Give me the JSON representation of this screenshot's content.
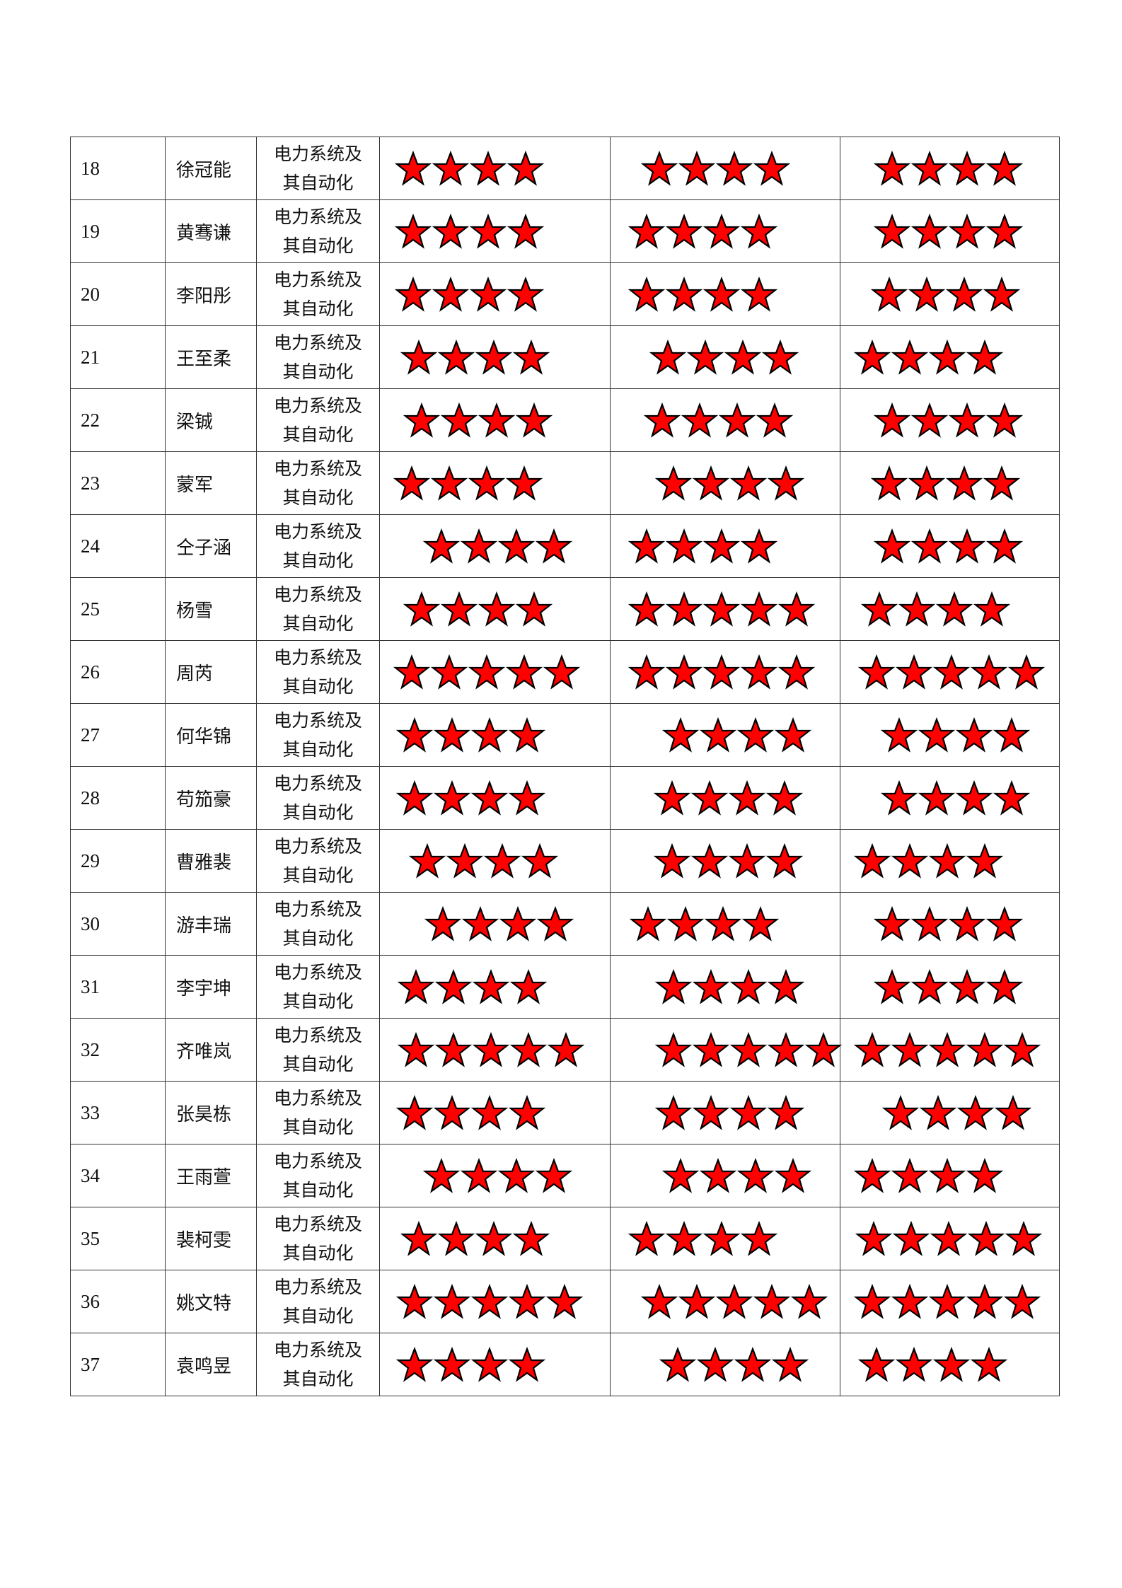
{
  "star_color": "#ff0000",
  "rows": [
    {
      "num": "18",
      "name": "徐冠能",
      "major_line1": "电力系统及",
      "major_line2": "其自动化",
      "ratings": [
        4,
        4,
        4
      ]
    },
    {
      "num": "19",
      "name": "黄骞谦",
      "major_line1": "电力系统及",
      "major_line2": "其自动化",
      "ratings": [
        4,
        4,
        4
      ]
    },
    {
      "num": "20",
      "name": "李阳彤",
      "major_line1": "电力系统及",
      "major_line2": "其自动化",
      "ratings": [
        4,
        4,
        4
      ]
    },
    {
      "num": "21",
      "name": "王至柔",
      "major_line1": "电力系统及",
      "major_line2": "其自动化",
      "ratings": [
        4,
        4,
        4
      ]
    },
    {
      "num": "22",
      "name": "梁铖",
      "major_line1": "电力系统及",
      "major_line2": "其自动化",
      "ratings": [
        4,
        4,
        4
      ]
    },
    {
      "num": "23",
      "name": "蒙军",
      "major_line1": "电力系统及",
      "major_line2": "其自动化",
      "ratings": [
        4,
        4,
        4
      ]
    },
    {
      "num": "24",
      "name": "仝子涵",
      "major_line1": "电力系统及",
      "major_line2": "其自动化",
      "ratings": [
        4,
        4,
        4
      ]
    },
    {
      "num": "25",
      "name": "杨雪",
      "major_line1": "电力系统及",
      "major_line2": "其自动化",
      "ratings": [
        4,
        5,
        4
      ]
    },
    {
      "num": "26",
      "name": "周芮",
      "major_line1": "电力系统及",
      "major_line2": "其自动化",
      "ratings": [
        5,
        5,
        5
      ]
    },
    {
      "num": "27",
      "name": "何华锦",
      "major_line1": "电力系统及",
      "major_line2": "其自动化",
      "ratings": [
        4,
        4,
        4
      ]
    },
    {
      "num": "28",
      "name": "苟笳豪",
      "major_line1": "电力系统及",
      "major_line2": "其自动化",
      "ratings": [
        4,
        4,
        4
      ]
    },
    {
      "num": "29",
      "name": "曹雅裴",
      "major_line1": "电力系统及",
      "major_line2": "其自动化",
      "ratings": [
        4,
        4,
        4
      ]
    },
    {
      "num": "30",
      "name": "游丰瑞",
      "major_line1": "电力系统及",
      "major_line2": "其自动化",
      "ratings": [
        4,
        4,
        4
      ]
    },
    {
      "num": "31",
      "name": "李宇坤",
      "major_line1": "电力系统及",
      "major_line2": "其自动化",
      "ratings": [
        4,
        4,
        4
      ]
    },
    {
      "num": "32",
      "name": "齐唯岚",
      "major_line1": "电力系统及",
      "major_line2": "其自动化",
      "ratings": [
        5,
        5,
        5
      ]
    },
    {
      "num": "33",
      "name": "张昊栋",
      "major_line1": "电力系统及",
      "major_line2": "其自动化",
      "ratings": [
        4,
        4,
        4
      ]
    },
    {
      "num": "34",
      "name": "王雨萱",
      "major_line1": "电力系统及",
      "major_line2": "其自动化",
      "ratings": [
        4,
        4,
        4
      ]
    },
    {
      "num": "35",
      "name": "裴柯雯",
      "major_line1": "电力系统及",
      "major_line2": "其自动化",
      "ratings": [
        4,
        4,
        5
      ]
    },
    {
      "num": "36",
      "name": "姚文特",
      "major_line1": "电力系统及",
      "major_line2": "其自动化",
      "ratings": [
        5,
        5,
        5
      ]
    },
    {
      "num": "37",
      "name": "袁鸣昱",
      "major_line1": "电力系统及",
      "major_line2": "其自动化",
      "ratings": [
        4,
        4,
        4
      ]
    }
  ]
}
